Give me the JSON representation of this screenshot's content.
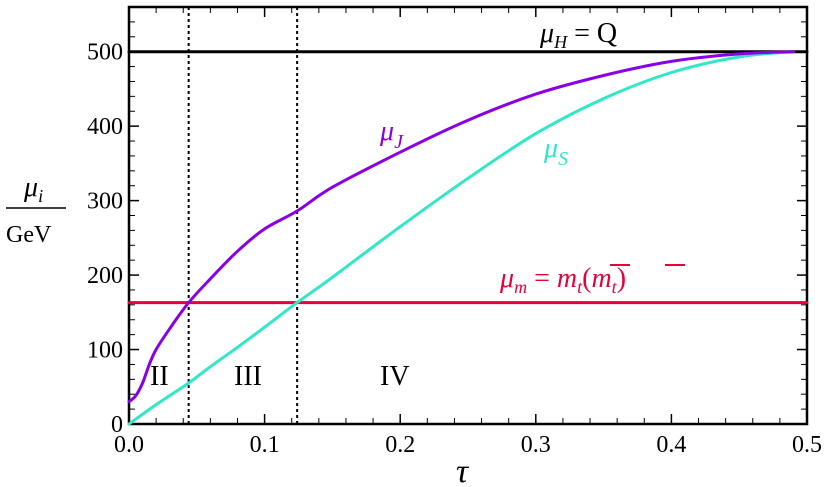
{
  "chart_data": {
    "type": "line",
    "xlabel": "τ",
    "ylabel": {
      "numerator_symbol": "μ",
      "numerator_sub": "i",
      "denominator": "GeV"
    },
    "xlim": [
      0,
      0.5
    ],
    "ylim": [
      0,
      560
    ],
    "x_ticks": [
      "0.0",
      "0.1",
      "0.2",
      "0.3",
      "0.4",
      "0.5"
    ],
    "y_ticks": [
      "0",
      "100",
      "200",
      "300",
      "400",
      "500"
    ],
    "x_tick_values": [
      0,
      0.1,
      0.2,
      0.3,
      0.4,
      0.5
    ],
    "y_tick_values": [
      0,
      100,
      200,
      300,
      400,
      500
    ],
    "series": [
      {
        "name": "μJ",
        "label_symbol": "μ",
        "label_sub": "J",
        "color": "#8a00e6",
        "x": [
          0,
          0.005,
          0.01,
          0.015,
          0.02,
          0.03,
          0.044,
          0.06,
          0.08,
          0.1,
          0.124,
          0.15,
          0.2,
          0.25,
          0.3,
          0.35,
          0.4,
          0.45,
          0.49
        ],
        "y": [
          30,
          38,
          55,
          80,
          100,
          128,
          163,
          195,
          232,
          262,
          286,
          318,
          365,
          408,
          443,
          468,
          487,
          497,
          500
        ]
      },
      {
        "name": "μS",
        "label_symbol": "μ",
        "label_sub": "S",
        "color": "#2ee8c8",
        "x": [
          0,
          0.02,
          0.044,
          0.06,
          0.08,
          0.1,
          0.124,
          0.15,
          0.2,
          0.25,
          0.3,
          0.35,
          0.4,
          0.45,
          0.49
        ],
        "y": [
          0,
          26,
          55,
          77,
          103,
          130,
          163,
          197,
          265,
          330,
          390,
          437,
          472,
          493,
          500
        ]
      },
      {
        "name": "μH = Q",
        "label_symbol": "μ",
        "label_sub": "H",
        "label_rest": " = Q",
        "color": "#000000",
        "x": [
          0,
          0.5
        ],
        "y": [
          500,
          500
        ]
      },
      {
        "name": "μm = m̄t(m̄t)",
        "label_symbol": "μ",
        "label_sub": "m",
        "label_rest": " = ",
        "color": "#e8003a",
        "x": [
          0,
          0.5
        ],
        "y": [
          163,
          163
        ]
      }
    ],
    "vlines": [
      0.044,
      0.124
    ],
    "regions": [
      "II",
      "III",
      "IV"
    ],
    "grid": false
  },
  "annotations": {
    "mt_symbol": "m",
    "mt_sub": "t",
    "paren_open": "(",
    "paren_close": ")"
  },
  "colors": {
    "frame": "#000000"
  }
}
